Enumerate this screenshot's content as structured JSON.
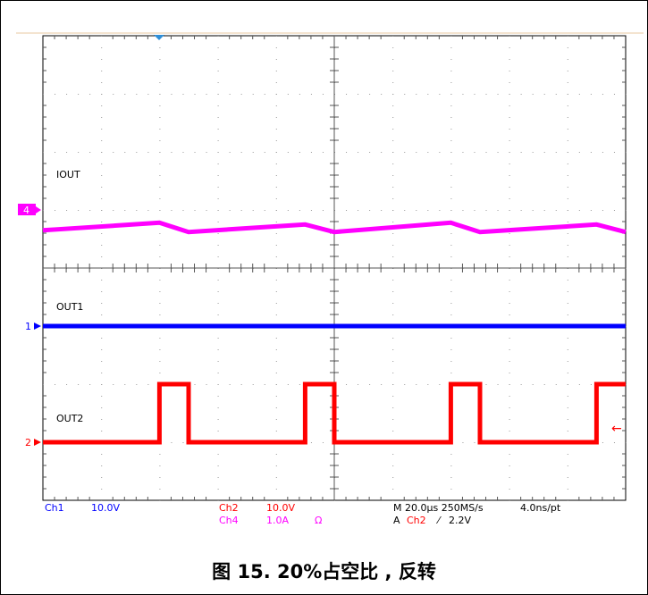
{
  "chart_data": {
    "type": "line",
    "instrument": "oscilloscope",
    "grid": true,
    "divisions_x": 10,
    "divisions_y": 8,
    "x_unit": "µs",
    "x_range": [
      0,
      200
    ],
    "series": [
      {
        "name": "IOUT",
        "channel_marker": "4",
        "color": "#ff00ff",
        "scale": "1.0A",
        "points": [
          [
            0,
            -0.35
          ],
          [
            40,
            -0.22
          ],
          [
            50,
            -0.38
          ],
          [
            90,
            -0.25
          ],
          [
            100,
            -0.38
          ],
          [
            140,
            -0.22
          ],
          [
            150,
            -0.38
          ],
          [
            190,
            -0.25
          ],
          [
            200,
            -0.38
          ]
        ]
      },
      {
        "name": "OUT1",
        "channel_marker": "1",
        "color": "#0000ff",
        "scale": "10.0V",
        "points": [
          [
            0,
            0
          ],
          [
            200,
            0
          ]
        ]
      },
      {
        "name": "OUT2",
        "channel_marker": "2",
        "color": "#ff0000",
        "scale": "10.0V",
        "points": [
          [
            0,
            0
          ],
          [
            40,
            0
          ],
          [
            40,
            1
          ],
          [
            50,
            1
          ],
          [
            50,
            0
          ],
          [
            90,
            0
          ],
          [
            90,
            1
          ],
          [
            100,
            1
          ],
          [
            100,
            0
          ],
          [
            140,
            0
          ],
          [
            140,
            1
          ],
          [
            150,
            1
          ],
          [
            150,
            0
          ],
          [
            190,
            0
          ],
          [
            190,
            1
          ],
          [
            200,
            1
          ]
        ]
      }
    ],
    "readouts": {
      "ch1": "Ch1",
      "ch1_scale": "10.0V",
      "ch2": "Ch2",
      "ch2_scale": "10.0V",
      "ch4": "Ch4",
      "ch4_scale": "1.0A",
      "ohm": "Ω",
      "timebase": "M 20.0µs 250MS/s",
      "resolution": "4.0ns/pt",
      "trigger_prefix": "A",
      "trigger_channel": "Ch2",
      "trigger_slope": "⁄",
      "trigger_level": "2.2V"
    }
  },
  "caption": "图 15. 20%占空比 , 反转"
}
